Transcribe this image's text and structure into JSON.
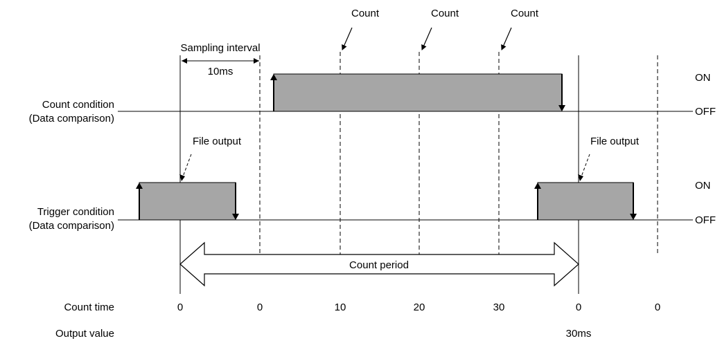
{
  "labels": {
    "count_word": "Count",
    "sampling_interval": "Sampling interval",
    "interval_value": "10ms",
    "file_output": "File output",
    "count_period": "Count period",
    "on": "ON",
    "off": "OFF"
  },
  "rows": {
    "count_condition": [
      "Count condition",
      "(Data comparison)"
    ],
    "trigger_condition": [
      "Trigger condition",
      "(Data comparison)"
    ],
    "count_time": "Count time",
    "output_value": "Output value"
  },
  "count_time_values": [
    "0",
    "0",
    "10",
    "20",
    "30",
    "0",
    "0"
  ],
  "output_value_text": "30ms",
  "colors": {
    "pulse_fill": "#a6a6a6",
    "line": "#000000"
  }
}
